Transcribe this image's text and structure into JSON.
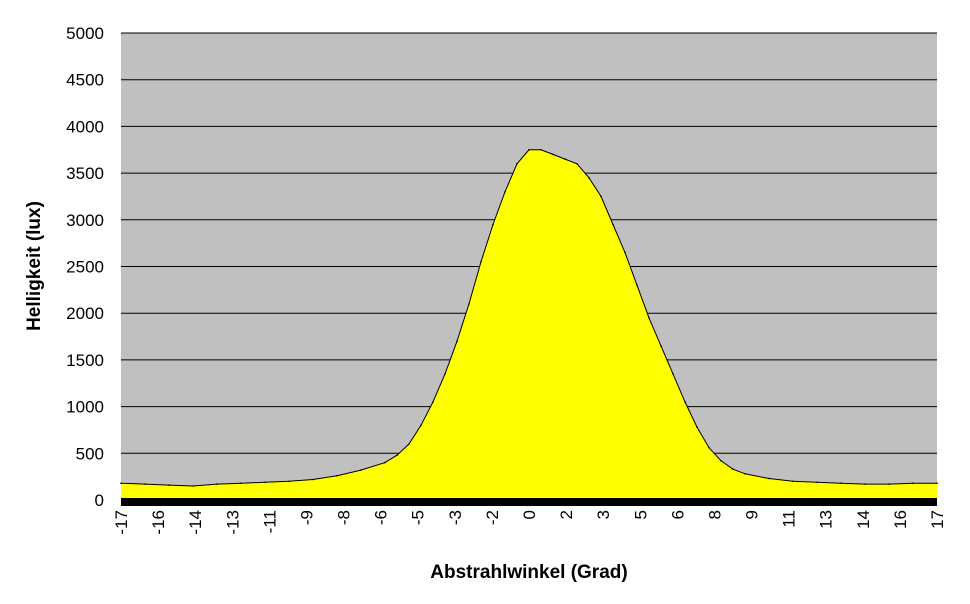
{
  "chart_data": {
    "type": "area",
    "title": "",
    "xlabel": "Abstrahlwinkel (Grad)",
    "ylabel": "Helligkeit (lux)",
    "xlim": [
      -17,
      17
    ],
    "ylim": [
      0,
      5000
    ],
    "y_ticks": [
      0,
      500,
      1000,
      1500,
      2000,
      2500,
      3000,
      3500,
      4000,
      4500,
      5000
    ],
    "x_tick_labels": [
      "-17",
      "-16",
      "-14",
      "-13",
      "-11",
      "-9",
      "-8",
      "-6",
      "-5",
      "-3",
      "-2",
      "0",
      "2",
      "3",
      "5",
      "6",
      "8",
      "9",
      "11",
      "13",
      "14",
      "16",
      "17"
    ],
    "grid": "horizontal",
    "legend": "none",
    "series": [
      {
        "x": [
          -17,
          -16,
          -15,
          -14,
          -13,
          -12,
          -11,
          -10,
          -9,
          -8,
          -7,
          -6,
          -5.5,
          -5,
          -4.5,
          -4,
          -3.5,
          -3,
          -2.5,
          -2,
          -1.5,
          -1,
          -0.5,
          0,
          0.5,
          1,
          1.5,
          2,
          2.5,
          3,
          3.5,
          4,
          4.5,
          5,
          5.5,
          6,
          6.5,
          7,
          7.5,
          8,
          8.5,
          9,
          10,
          11,
          12,
          13,
          14,
          15,
          16,
          17
        ],
        "values": [
          180,
          170,
          160,
          150,
          170,
          180,
          190,
          200,
          220,
          260,
          320,
          400,
          480,
          600,
          800,
          1050,
          1350,
          1700,
          2100,
          2550,
          2950,
          3300,
          3600,
          3750,
          3750,
          3700,
          3650,
          3600,
          3450,
          3250,
          2950,
          2650,
          2300,
          1950,
          1650,
          1350,
          1050,
          780,
          560,
          420,
          330,
          280,
          230,
          200,
          190,
          180,
          170,
          170,
          180,
          180
        ]
      }
    ],
    "colors": {
      "plot_background": "#c0c0c0",
      "fill": "#ffff00",
      "line": "#000000",
      "gridline": "#000000",
      "baseline": "#000000"
    }
  }
}
